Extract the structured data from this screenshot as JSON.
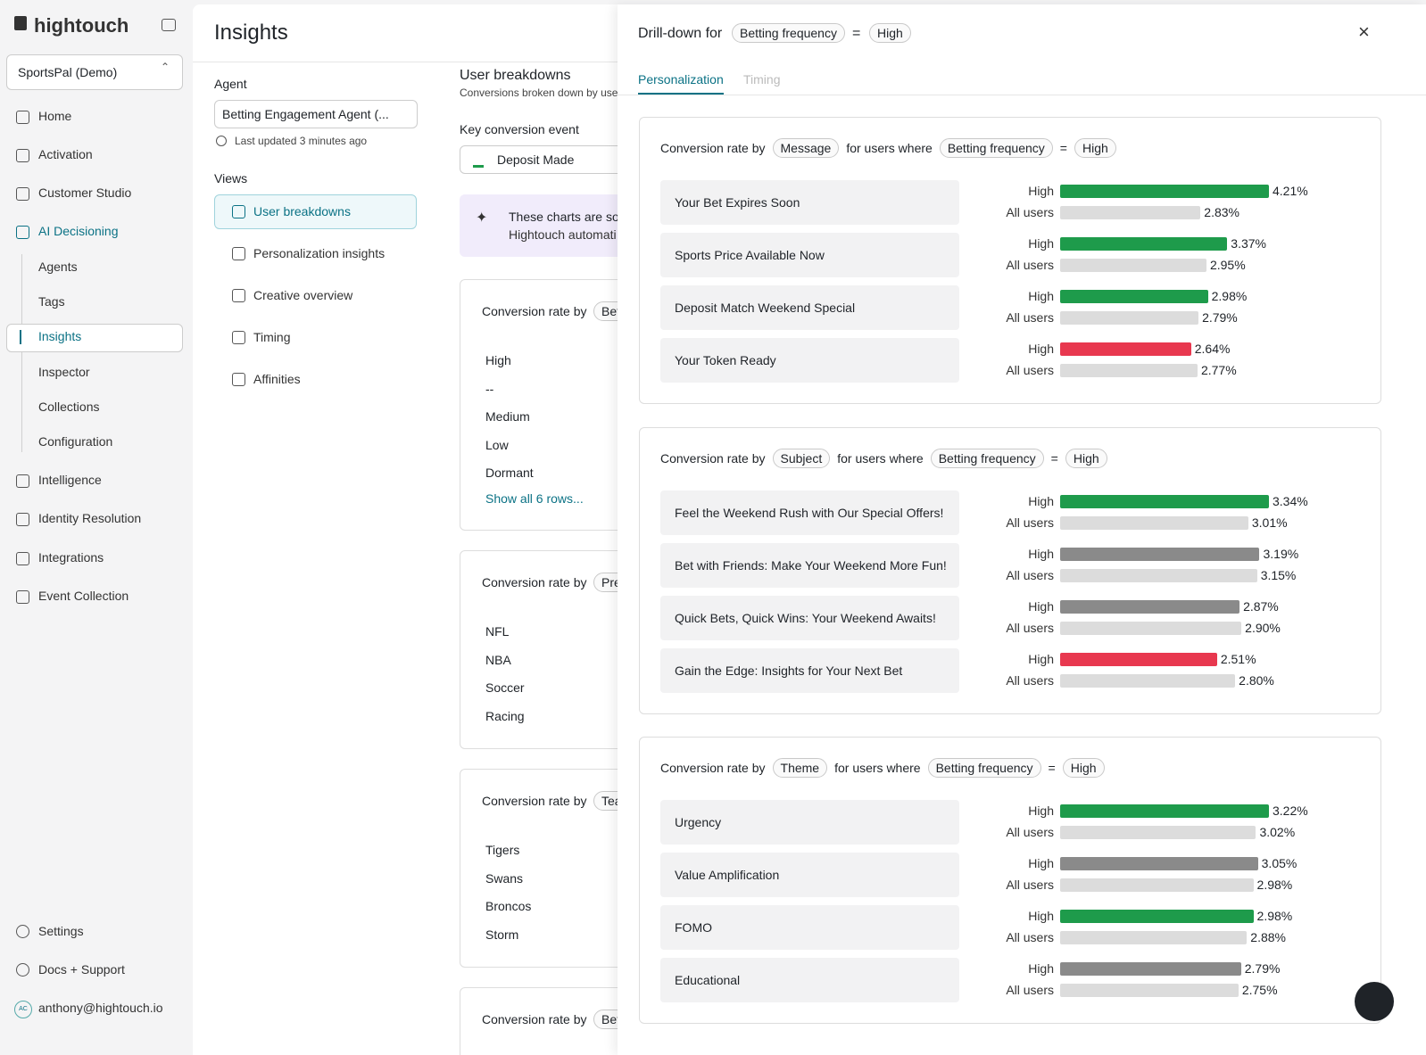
{
  "sidebar": {
    "logo": "hightouch",
    "workspace": "SportsPal (Demo)",
    "nav": [
      "Home",
      "Activation",
      "Customer Studio",
      "AI Decisioning"
    ],
    "sub": [
      "Agents",
      "Tags",
      "Insights",
      "Inspector",
      "Collections",
      "Configuration"
    ],
    "more": [
      "Intelligence",
      "Identity Resolution",
      "Integrations",
      "Event Collection"
    ],
    "footer": [
      "Settings",
      "Docs + Support",
      "anthony@hightouch.io"
    ],
    "avatar": "AC"
  },
  "page": {
    "title": "Insights",
    "agent_label": "Agent",
    "agent": "Betting Engagement Agent (...",
    "updated": "Last updated 3 minutes ago",
    "views_label": "Views",
    "views": [
      "User breakdowns",
      "Personalization insights",
      "Creative overview",
      "Timing",
      "Affinities"
    ]
  },
  "main": {
    "title": "User breakdowns",
    "subtitle": "Conversions broken down by user",
    "event_label": "Key conversion event",
    "event": "Deposit Made",
    "banner": [
      "These charts are so",
      "Hightouch automati"
    ],
    "cards": [
      {
        "title": "Conversion rate by",
        "chip": "Bet",
        "rows": [
          "High",
          "--",
          "Medium",
          "Low",
          "Dormant"
        ],
        "more": "Show all 6 rows..."
      },
      {
        "title": "Conversion rate by",
        "chip": "Pre",
        "rows": [
          "NFL",
          "NBA",
          "Soccer",
          "Racing"
        ]
      },
      {
        "title": "Conversion rate by",
        "chip": "Tea",
        "rows": [
          "Tigers",
          "Swans",
          "Broncos",
          "Storm"
        ]
      },
      {
        "title": "Conversion rate by",
        "chip": "Bet",
        "rows": []
      }
    ]
  },
  "drawer": {
    "title": "Drill-down for",
    "attribute": "Betting frequency",
    "op": "=",
    "value": "High",
    "tabs": [
      "Personalization",
      "Timing"
    ],
    "sections": [
      {
        "prefix": "Conversion rate by",
        "dimension": "Message",
        "mid": "for users where",
        "attribute": "Betting frequency",
        "op": "=",
        "value": "High",
        "items": [
          {
            "label": "Your Bet Expires Soon",
            "bars": [
              {
                "name": "High",
                "value": 4.21,
                "value_label": "4.21%",
                "color": "#1e9b4b"
              },
              {
                "name": "All users",
                "value": 2.83,
                "value_label": "2.83%",
                "color": "#dcdcdc"
              }
            ]
          },
          {
            "label": "Sports Price Available Now",
            "bars": [
              {
                "name": "High",
                "value": 3.37,
                "value_label": "3.37%",
                "color": "#1e9b4b"
              },
              {
                "name": "All users",
                "value": 2.95,
                "value_label": "2.95%",
                "color": "#dcdcdc"
              }
            ]
          },
          {
            "label": "Deposit Match Weekend Special",
            "bars": [
              {
                "name": "High",
                "value": 2.98,
                "value_label": "2.98%",
                "color": "#1e9b4b"
              },
              {
                "name": "All users",
                "value": 2.79,
                "value_label": "2.79%",
                "color": "#dcdcdc"
              }
            ]
          },
          {
            "label": "Your Token Ready",
            "bars": [
              {
                "name": "High",
                "value": 2.64,
                "value_label": "2.64%",
                "color": "#e8384f"
              },
              {
                "name": "All users",
                "value": 2.77,
                "value_label": "2.77%",
                "color": "#dcdcdc"
              }
            ]
          }
        ]
      },
      {
        "prefix": "Conversion rate by",
        "dimension": "Subject",
        "mid": "for users where",
        "attribute": "Betting frequency",
        "op": "=",
        "value": "High",
        "items": [
          {
            "label": "Feel the Weekend Rush with Our Special Offers!",
            "bars": [
              {
                "name": "High",
                "value": 3.34,
                "value_label": "3.34%",
                "color": "#1e9b4b"
              },
              {
                "name": "All users",
                "value": 3.01,
                "value_label": "3.01%",
                "color": "#dcdcdc"
              }
            ]
          },
          {
            "label": "Bet with Friends: Make Your Weekend More Fun!",
            "bars": [
              {
                "name": "High",
                "value": 3.19,
                "value_label": "3.19%",
                "color": "#8a8a8a"
              },
              {
                "name": "All users",
                "value": 3.15,
                "value_label": "3.15%",
                "color": "#dcdcdc"
              }
            ]
          },
          {
            "label": "Quick Bets, Quick Wins: Your Weekend Awaits!",
            "bars": [
              {
                "name": "High",
                "value": 2.87,
                "value_label": "2.87%",
                "color": "#8a8a8a"
              },
              {
                "name": "All users",
                "value": 2.9,
                "value_label": "2.90%",
                "color": "#dcdcdc"
              }
            ]
          },
          {
            "label": "Gain the Edge: Insights for Your Next Bet",
            "bars": [
              {
                "name": "High",
                "value": 2.51,
                "value_label": "2.51%",
                "color": "#e8384f"
              },
              {
                "name": "All users",
                "value": 2.8,
                "value_label": "2.80%",
                "color": "#dcdcdc"
              }
            ]
          }
        ]
      },
      {
        "prefix": "Conversion rate by",
        "dimension": "Theme",
        "mid": "for users where",
        "attribute": "Betting frequency",
        "op": "=",
        "value": "High",
        "items": [
          {
            "label": "Urgency",
            "bars": [
              {
                "name": "High",
                "value": 3.22,
                "value_label": "3.22%",
                "color": "#1e9b4b"
              },
              {
                "name": "All users",
                "value": 3.02,
                "value_label": "3.02%",
                "color": "#dcdcdc"
              }
            ]
          },
          {
            "label": "Value Amplification",
            "bars": [
              {
                "name": "High",
                "value": 3.05,
                "value_label": "3.05%",
                "color": "#8a8a8a"
              },
              {
                "name": "All users",
                "value": 2.98,
                "value_label": "2.98%",
                "color": "#dcdcdc"
              }
            ]
          },
          {
            "label": "FOMO",
            "bars": [
              {
                "name": "High",
                "value": 2.98,
                "value_label": "2.98%",
                "color": "#1e9b4b"
              },
              {
                "name": "All users",
                "value": 2.88,
                "value_label": "2.88%",
                "color": "#dcdcdc"
              }
            ]
          },
          {
            "label": "Educational",
            "bars": [
              {
                "name": "High",
                "value": 2.79,
                "value_label": "2.79%",
                "color": "#8a8a8a"
              },
              {
                "name": "All users",
                "value": 2.75,
                "value_label": "2.75%",
                "color": "#dcdcdc"
              }
            ]
          }
        ]
      }
    ]
  }
}
